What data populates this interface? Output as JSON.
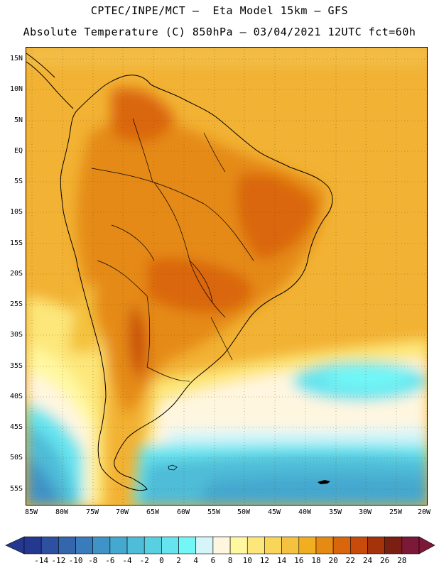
{
  "header": {
    "line1": "CPTEC/INPE/MCT –  Eta Model 15km – GFS",
    "line2": "Absolute Temperature (C) 850hPa – 03/04/2021 12UTC fct=60h"
  },
  "map": {
    "region": "South America",
    "lat_labels": [
      "15N",
      "10N",
      "5N",
      "EQ",
      "5S",
      "10S",
      "15S",
      "20S",
      "25S",
      "30S",
      "35S",
      "40S",
      "45S",
      "50S",
      "55S"
    ],
    "lon_labels": [
      "85W",
      "80W",
      "75W",
      "70W",
      "65W",
      "60W",
      "55W",
      "50W",
      "45W",
      "40W",
      "35W",
      "30W",
      "25W",
      "20W"
    ]
  },
  "colorbar": {
    "labels": [
      "-14",
      "-12",
      "-10",
      "-8",
      "-6",
      "-4",
      "-2",
      "0",
      "2",
      "4",
      "6",
      "8",
      "10",
      "12",
      "14",
      "16",
      "18",
      "20",
      "22",
      "24",
      "26",
      "28"
    ],
    "colors": [
      "#25388f",
      "#2d51a0",
      "#3466ad",
      "#3a7cbb",
      "#3f93c6",
      "#45a8cf",
      "#4fbcd8",
      "#59d0e2",
      "#66e4ee",
      "#72f6f6",
      "#d6f5fa",
      "#fff6e0",
      "#fff8a0",
      "#fde77a",
      "#f9d55a",
      "#f4c23e",
      "#f0ae20",
      "#e58a12",
      "#da660c",
      "#c84b0c",
      "#a4330c",
      "#7b1f12",
      "#7c1838"
    ]
  }
}
